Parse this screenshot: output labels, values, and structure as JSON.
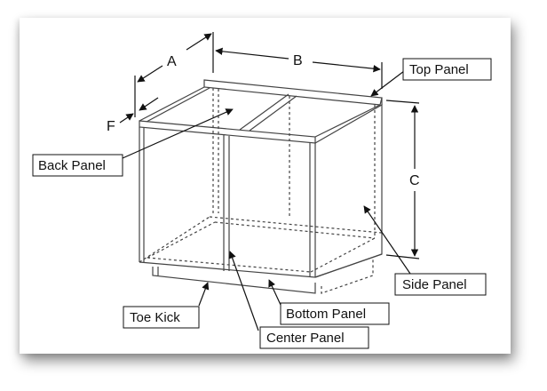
{
  "diagram": {
    "dimensions": {
      "a": "A",
      "b": "B",
      "c": "C",
      "f": "F"
    },
    "labels": {
      "top_panel": "Top Panel",
      "back_panel": "Back Panel",
      "side_panel": "Side Panel",
      "bottom_panel": "Bottom Panel",
      "toe_kick": "Toe Kick",
      "center_panel": "Center Panel"
    },
    "colors": {
      "stroke": "#111111",
      "panel_line": "#444444",
      "background": "#ffffff"
    }
  }
}
